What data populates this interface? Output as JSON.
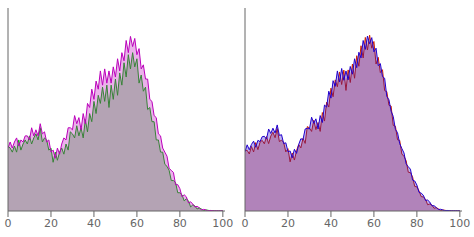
{
  "chart_data": [
    {
      "type": "area",
      "x": [
        0,
        1,
        2,
        3,
        4,
        5,
        6,
        7,
        8,
        9,
        10,
        11,
        12,
        13,
        14,
        15,
        16,
        17,
        18,
        19,
        20,
        21,
        22,
        23,
        24,
        25,
        26,
        27,
        28,
        29,
        30,
        31,
        32,
        33,
        34,
        35,
        36,
        37,
        38,
        39,
        40,
        41,
        42,
        43,
        44,
        45,
        46,
        47,
        48,
        49,
        50,
        51,
        52,
        53,
        54,
        55,
        56,
        57,
        58,
        59,
        60,
        61,
        62,
        63,
        64,
        65,
        66,
        67,
        68,
        69,
        70,
        71,
        72,
        73,
        74,
        75,
        76,
        77,
        78,
        79,
        80,
        81,
        82,
        83,
        84,
        85,
        86,
        87,
        88,
        89,
        90,
        91,
        92,
        93,
        94,
        95,
        96,
        97,
        98,
        99,
        100
      ],
      "xlim": [
        0,
        101
      ],
      "xticks": [
        0,
        20,
        40,
        60,
        80,
        100
      ],
      "ylim": [
        0,
        1.0
      ],
      "tick_labels": "x",
      "series": [
        {
          "color": "#00bb00",
          "values": [
            0.32,
            0.31,
            0.29,
            0.32,
            0.29,
            0.35,
            0.3,
            0.33,
            0.35,
            0.33,
            0.37,
            0.33,
            0.36,
            0.38,
            0.35,
            0.41,
            0.34,
            0.36,
            0.35,
            0.3,
            0.31,
            0.24,
            0.29,
            0.25,
            0.29,
            0.31,
            0.28,
            0.33,
            0.3,
            0.39,
            0.38,
            0.36,
            0.42,
            0.37,
            0.41,
            0.36,
            0.45,
            0.39,
            0.48,
            0.44,
            0.54,
            0.48,
            0.57,
            0.53,
            0.61,
            0.54,
            0.62,
            0.51,
            0.62,
            0.55,
            0.65,
            0.57,
            0.68,
            0.62,
            0.73,
            0.66,
            0.77,
            0.7,
            0.78,
            0.71,
            0.75,
            0.63,
            0.67,
            0.59,
            0.61,
            0.5,
            0.51,
            0.44,
            0.44,
            0.35,
            0.35,
            0.29,
            0.29,
            0.23,
            0.22,
            0.2,
            0.15,
            0.15,
            0.14,
            0.09,
            0.09,
            0.08,
            0.05,
            0.06,
            0.05,
            0.02,
            0.03,
            0.025,
            0.01,
            0.015,
            0.01,
            0.002,
            0.005,
            0.004,
            0.001,
            0.002,
            0.0015,
            0.001,
            0.0012,
            0.001,
            0.001
          ]
        },
        {
          "color": "#bb00bb",
          "values": [
            0.31,
            0.34,
            0.31,
            0.34,
            0.36,
            0.32,
            0.35,
            0.34,
            0.37,
            0.37,
            0.35,
            0.41,
            0.37,
            0.4,
            0.37,
            0.43,
            0.38,
            0.39,
            0.34,
            0.35,
            0.29,
            0.3,
            0.26,
            0.31,
            0.28,
            0.33,
            0.36,
            0.35,
            0.41,
            0.41,
            0.4,
            0.47,
            0.43,
            0.46,
            0.4,
            0.48,
            0.43,
            0.53,
            0.51,
            0.6,
            0.55,
            0.64,
            0.6,
            0.69,
            0.62,
            0.7,
            0.63,
            0.69,
            0.63,
            0.71,
            0.66,
            0.75,
            0.69,
            0.78,
            0.74,
            0.84,
            0.78,
            0.86,
            0.81,
            0.85,
            0.77,
            0.8,
            0.7,
            0.72,
            0.65,
            0.65,
            0.55,
            0.54,
            0.47,
            0.46,
            0.38,
            0.37,
            0.31,
            0.29,
            0.27,
            0.21,
            0.2,
            0.19,
            0.13,
            0.13,
            0.11,
            0.07,
            0.08,
            0.07,
            0.04,
            0.045,
            0.035,
            0.02,
            0.023,
            0.016,
            0.006,
            0.008,
            0.006,
            0.001,
            0.003,
            0.002,
            0.001,
            0.0014,
            0.001,
            0.001,
            0.001
          ]
        }
      ]
    },
    {
      "type": "area",
      "x": [
        0,
        1,
        2,
        3,
        4,
        5,
        6,
        7,
        8,
        9,
        10,
        11,
        12,
        13,
        14,
        15,
        16,
        17,
        18,
        19,
        20,
        21,
        22,
        23,
        24,
        25,
        26,
        27,
        28,
        29,
        30,
        31,
        32,
        33,
        34,
        35,
        36,
        37,
        38,
        39,
        40,
        41,
        42,
        43,
        44,
        45,
        46,
        47,
        48,
        49,
        50,
        51,
        52,
        53,
        54,
        55,
        56,
        57,
        58,
        59,
        60,
        61,
        62,
        63,
        64,
        65,
        66,
        67,
        68,
        69,
        70,
        71,
        72,
        73,
        74,
        75,
        76,
        77,
        78,
        79,
        80,
        81,
        82,
        83,
        84,
        85,
        86,
        87,
        88,
        89,
        90,
        91,
        92,
        93,
        94,
        95,
        96,
        97,
        98,
        99,
        100
      ],
      "xlim": [
        0,
        101
      ],
      "xticks": [
        0,
        20,
        40,
        60,
        80,
        100
      ],
      "ylim": [
        0,
        1.0
      ],
      "tick_labels": "x",
      "series": [
        {
          "color": "#cc2200",
          "values": [
            0.298,
            0.299,
            0.281,
            0.318,
            0.291,
            0.337,
            0.302,
            0.339,
            0.348,
            0.331,
            0.367,
            0.332,
            0.369,
            0.388,
            0.361,
            0.406,
            0.342,
            0.349,
            0.338,
            0.291,
            0.307,
            0.242,
            0.286,
            0.251,
            0.298,
            0.327,
            0.311,
            0.358,
            0.333,
            0.416,
            0.409,
            0.392,
            0.447,
            0.401,
            0.436,
            0.392,
            0.485,
            0.443,
            0.536,
            0.512,
            0.605,
            0.563,
            0.646,
            0.612,
            0.685,
            0.623,
            0.694,
            0.594,
            0.695,
            0.633,
            0.724,
            0.654,
            0.765,
            0.713,
            0.814,
            0.754,
            0.855,
            0.793,
            0.866,
            0.802,
            0.835,
            0.724,
            0.757,
            0.682,
            0.696,
            0.593,
            0.588,
            0.521,
            0.517,
            0.422,
            0.418,
            0.351,
            0.348,
            0.281,
            0.269,
            0.248,
            0.191,
            0.189,
            0.168,
            0.121,
            0.119,
            0.099,
            0.071,
            0.069,
            0.059,
            0.031,
            0.0345,
            0.0295,
            0.0135,
            0.0165,
            0.0107,
            0.0023,
            0.0048,
            0.0038,
            0.001,
            0.0019,
            0.0014,
            0.001,
            0.0011,
            0.001,
            0.001
          ]
        },
        {
          "color": "#2200cc",
          "values": [
            0.292,
            0.326,
            0.302,
            0.328,
            0.344,
            0.314,
            0.348,
            0.342,
            0.366,
            0.368,
            0.354,
            0.404,
            0.382,
            0.408,
            0.384,
            0.424,
            0.372,
            0.376,
            0.332,
            0.336,
            0.292,
            0.296,
            0.262,
            0.304,
            0.284,
            0.328,
            0.356,
            0.352,
            0.404,
            0.408,
            0.404,
            0.462,
            0.432,
            0.454,
            0.404,
            0.47,
            0.436,
            0.522,
            0.512,
            0.59,
            0.556,
            0.642,
            0.614,
            0.69,
            0.636,
            0.702,
            0.644,
            0.69,
            0.646,
            0.712,
            0.674,
            0.75,
            0.706,
            0.782,
            0.754,
            0.84,
            0.796,
            0.862,
            0.824,
            0.854,
            0.784,
            0.802,
            0.716,
            0.726,
            0.662,
            0.654,
            0.564,
            0.548,
            0.492,
            0.466,
            0.402,
            0.386,
            0.332,
            0.308,
            0.286,
            0.232,
            0.218,
            0.206,
            0.152,
            0.148,
            0.128,
            0.092,
            0.088,
            0.078,
            0.052,
            0.054,
            0.044,
            0.026,
            0.026,
            0.0174,
            0.0076,
            0.0086,
            0.0056,
            0.0014,
            0.0028,
            0.0018,
            0.001,
            0.0012,
            0.001,
            0.001,
            0.001
          ]
        }
      ]
    }
  ]
}
